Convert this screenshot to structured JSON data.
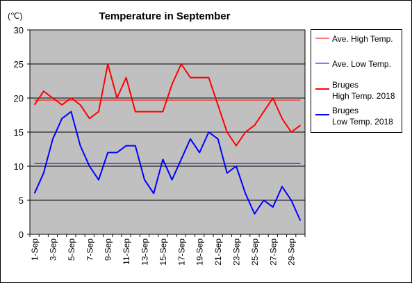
{
  "chart_data": {
    "type": "line",
    "title": "Temperature in September",
    "unit_label": "(℃)",
    "ylim": [
      0,
      30
    ],
    "y_ticks": [
      "0",
      "5",
      "10",
      "15",
      "20",
      "25",
      "30"
    ],
    "y_tick_values": [
      0,
      5,
      10,
      15,
      20,
      25,
      30
    ],
    "x_tick_labels": [
      "1-Sep",
      "3-Sep",
      "5-Sep",
      "7-Sep",
      "9-Sep",
      "11-Sep",
      "13-Sep",
      "15-Sep",
      "17-Sep",
      "19-Sep",
      "21-Sep",
      "23-Sep",
      "25-Sep",
      "27-Sep",
      "29-Sep"
    ],
    "x_tick_days": [
      1,
      3,
      5,
      7,
      9,
      11,
      13,
      15,
      17,
      19,
      21,
      23,
      25,
      27,
      29
    ],
    "days": [
      1,
      2,
      3,
      4,
      5,
      6,
      7,
      8,
      9,
      10,
      11,
      12,
      13,
      14,
      15,
      16,
      17,
      18,
      19,
      20,
      21,
      22,
      23,
      24,
      25,
      26,
      27,
      28,
      29,
      30
    ],
    "grid": true,
    "plot_background": "#c0c0c0",
    "legend_position": "right",
    "series": [
      {
        "name": "Ave. High Temp.",
        "color": "#ff0000",
        "width": 1,
        "values": [
          19.7,
          19.7,
          19.7,
          19.7,
          19.7,
          19.7,
          19.7,
          19.7,
          19.7,
          19.7,
          19.7,
          19.7,
          19.7,
          19.7,
          19.7,
          19.7,
          19.7,
          19.7,
          19.7,
          19.7,
          19.7,
          19.7,
          19.7,
          19.7,
          19.7,
          19.7,
          19.7,
          19.7,
          19.7,
          19.7
        ]
      },
      {
        "name": "Ave. Low Temp.",
        "color": "#0000ff",
        "width": 1,
        "values": [
          10.4,
          10.4,
          10.4,
          10.4,
          10.4,
          10.4,
          10.4,
          10.4,
          10.4,
          10.4,
          10.4,
          10.4,
          10.4,
          10.4,
          10.4,
          10.4,
          10.4,
          10.4,
          10.4,
          10.4,
          10.4,
          10.4,
          10.4,
          10.4,
          10.4,
          10.4,
          10.4,
          10.4,
          10.4,
          10.4
        ]
      },
      {
        "name": "Bruges High Temp. 2018",
        "label_lines": [
          "Bruges",
          "High Temp. 2018"
        ],
        "color": "#ff0000",
        "width": 2,
        "values": [
          19,
          21,
          20,
          19,
          20,
          19,
          17,
          18,
          25,
          20,
          23,
          18,
          18,
          18,
          18,
          22,
          25,
          23,
          23,
          23,
          19,
          15,
          13,
          15,
          16,
          18,
          20,
          17,
          15,
          16
        ]
      },
      {
        "name": "Bruges Low Temp. 2018",
        "label_lines": [
          "Bruges",
          "Low Temp. 2018"
        ],
        "color": "#0000ff",
        "width": 2,
        "values": [
          6,
          9,
          14,
          17,
          18,
          13,
          10,
          8,
          12,
          12,
          13,
          13,
          8,
          6,
          11,
          8,
          11,
          14,
          12,
          15,
          14,
          9,
          10,
          6,
          3,
          5,
          4,
          7,
          5,
          2
        ]
      }
    ]
  }
}
